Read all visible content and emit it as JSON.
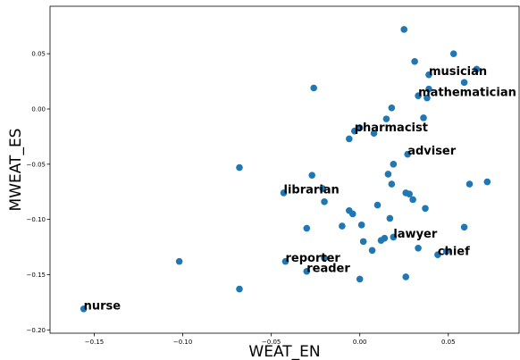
{
  "chart_data": {
    "type": "scatter",
    "title": "",
    "xlabel": "WEAT_EN",
    "ylabel": "MWEAT_ES",
    "xlim": [
      -0.175,
      0.09
    ],
    "ylim": [
      -0.203,
      0.093
    ],
    "xticks": [
      -0.15,
      -0.1,
      -0.05,
      0.0,
      0.05
    ],
    "xtick_labels": [
      "−0.15",
      "−0.10",
      "−0.05",
      "0.00",
      "0.05"
    ],
    "yticks": [
      -0.2,
      -0.15,
      -0.1,
      -0.05,
      0.0,
      0.05
    ],
    "ytick_labels": [
      "−0.20",
      "−0.15",
      "−0.10",
      "−0.05",
      "0.00",
      "0.05"
    ],
    "grid": false,
    "point_color": "#1f77b4",
    "points": [
      {
        "x": 0.025,
        "y": 0.072,
        "label": ""
      },
      {
        "x": 0.053,
        "y": 0.05,
        "label": ""
      },
      {
        "x": 0.031,
        "y": 0.043,
        "label": ""
      },
      {
        "x": 0.066,
        "y": 0.036,
        "label": ""
      },
      {
        "x": 0.039,
        "y": 0.031,
        "label": "musician"
      },
      {
        "x": 0.059,
        "y": 0.024,
        "label": ""
      },
      {
        "x": -0.026,
        "y": 0.019,
        "label": ""
      },
      {
        "x": 0.039,
        "y": 0.018,
        "label": ""
      },
      {
        "x": 0.033,
        "y": 0.012,
        "label": "mathematician"
      },
      {
        "x": 0.038,
        "y": 0.01,
        "label": ""
      },
      {
        "x": 0.018,
        "y": 0.001,
        "label": ""
      },
      {
        "x": 0.036,
        "y": -0.008,
        "label": ""
      },
      {
        "x": 0.015,
        "y": -0.009,
        "label": ""
      },
      {
        "x": 0.0,
        "y": -0.017,
        "label": ""
      },
      {
        "x": -0.003,
        "y": -0.02,
        "label": "pharmacist"
      },
      {
        "x": 0.008,
        "y": -0.022,
        "label": ""
      },
      {
        "x": -0.006,
        "y": -0.027,
        "label": ""
      },
      {
        "x": 0.027,
        "y": -0.041,
        "label": "adviser"
      },
      {
        "x": 0.019,
        "y": -0.05,
        "label": ""
      },
      {
        "x": -0.068,
        "y": -0.053,
        "label": ""
      },
      {
        "x": 0.016,
        "y": -0.059,
        "label": ""
      },
      {
        "x": -0.027,
        "y": -0.06,
        "label": ""
      },
      {
        "x": 0.072,
        "y": -0.066,
        "label": ""
      },
      {
        "x": 0.062,
        "y": -0.068,
        "label": ""
      },
      {
        "x": 0.018,
        "y": -0.068,
        "label": ""
      },
      {
        "x": -0.021,
        "y": -0.072,
        "label": ""
      },
      {
        "x": -0.043,
        "y": -0.076,
        "label": "librarian"
      },
      {
        "x": 0.026,
        "y": -0.076,
        "label": ""
      },
      {
        "x": 0.028,
        "y": -0.077,
        "label": ""
      },
      {
        "x": 0.03,
        "y": -0.082,
        "label": ""
      },
      {
        "x": -0.02,
        "y": -0.084,
        "label": ""
      },
      {
        "x": 0.01,
        "y": -0.087,
        "label": ""
      },
      {
        "x": 0.037,
        "y": -0.09,
        "label": ""
      },
      {
        "x": -0.006,
        "y": -0.092,
        "label": ""
      },
      {
        "x": -0.004,
        "y": -0.095,
        "label": ""
      },
      {
        "x": 0.017,
        "y": -0.099,
        "label": ""
      },
      {
        "x": 0.001,
        "y": -0.105,
        "label": ""
      },
      {
        "x": -0.01,
        "y": -0.106,
        "label": ""
      },
      {
        "x": 0.059,
        "y": -0.107,
        "label": ""
      },
      {
        "x": -0.03,
        "y": -0.108,
        "label": ""
      },
      {
        "x": 0.019,
        "y": -0.116,
        "label": "lawyer"
      },
      {
        "x": 0.014,
        "y": -0.117,
        "label": ""
      },
      {
        "x": 0.012,
        "y": -0.119,
        "label": ""
      },
      {
        "x": 0.002,
        "y": -0.12,
        "label": ""
      },
      {
        "x": 0.033,
        "y": -0.126,
        "label": ""
      },
      {
        "x": 0.007,
        "y": -0.128,
        "label": ""
      },
      {
        "x": 0.049,
        "y": -0.129,
        "label": ""
      },
      {
        "x": 0.044,
        "y": -0.132,
        "label": "chief"
      },
      {
        "x": -0.02,
        "y": -0.135,
        "label": ""
      },
      {
        "x": -0.042,
        "y": -0.138,
        "label": "reporter"
      },
      {
        "x": -0.102,
        "y": -0.138,
        "label": ""
      },
      {
        "x": -0.03,
        "y": -0.147,
        "label": "reader"
      },
      {
        "x": 0.026,
        "y": -0.152,
        "label": ""
      },
      {
        "x": 0.0,
        "y": -0.154,
        "label": ""
      },
      {
        "x": -0.068,
        "y": -0.163,
        "label": ""
      },
      {
        "x": -0.156,
        "y": -0.181,
        "label": "nurse"
      }
    ]
  }
}
